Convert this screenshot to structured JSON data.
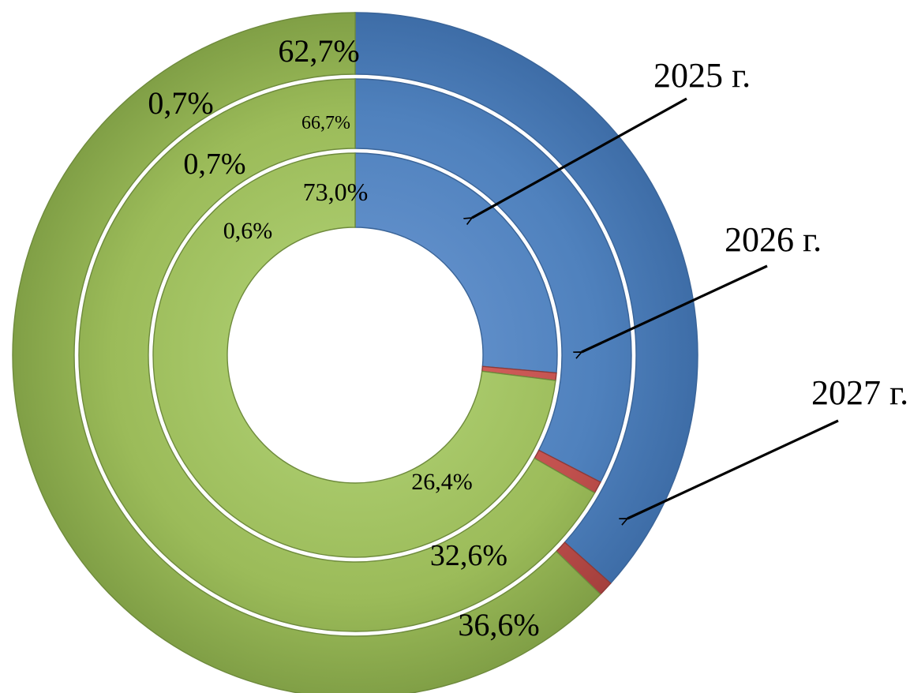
{
  "chart_data": {
    "type": "pie",
    "subtype": "doughnut",
    "title": "",
    "series_order": "inner_to_outer",
    "series": [
      {
        "name": "2025 г.",
        "segments": [
          {
            "value": 26.4,
            "label": "26,4%",
            "color": "#4f81bd"
          },
          {
            "value": 0.6,
            "label": "0,6%",
            "color": "#c0504d"
          },
          {
            "value": 73.0,
            "label": "73,0%",
            "color": "#9bbb59"
          }
        ]
      },
      {
        "name": "2026 г.",
        "segments": [
          {
            "value": 32.6,
            "label": "32,6%",
            "color": "#4f81bd"
          },
          {
            "value": 0.7,
            "label": "0,7%",
            "color": "#c0504d"
          },
          {
            "value": 66.7,
            "label": "66,7%",
            "color": "#9bbb59"
          }
        ]
      },
      {
        "name": "2027 г.",
        "segments": [
          {
            "value": 36.6,
            "label": "36,6%",
            "color": "#4f81bd"
          },
          {
            "value": 0.7,
            "label": "0,7%",
            "color": "#c0504d"
          },
          {
            "value": 62.7,
            "label": "62,7%",
            "color": "#9bbb59"
          }
        ]
      }
    ],
    "legend": "none",
    "annotations": [
      "2025 г.",
      "2026 г.",
      "2027 г."
    ]
  }
}
